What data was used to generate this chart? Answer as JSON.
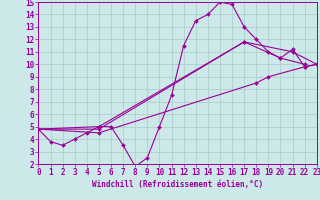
{
  "xlabel": "Windchill (Refroidissement éolien,°C)",
  "bg_color": "#cce8e8",
  "line_color": "#990099",
  "grid_color": "#aacccc",
  "xlim": [
    0,
    23
  ],
  "ylim": [
    2,
    15
  ],
  "xticks": [
    0,
    1,
    2,
    3,
    4,
    5,
    6,
    7,
    8,
    9,
    10,
    11,
    12,
    13,
    14,
    15,
    16,
    17,
    18,
    19,
    20,
    21,
    22,
    23
  ],
  "yticks": [
    2,
    3,
    4,
    5,
    6,
    7,
    8,
    9,
    10,
    11,
    12,
    13,
    14,
    15
  ],
  "series_full": [
    {
      "x": [
        0,
        1,
        2,
        3,
        4,
        5,
        6,
        7,
        8,
        9,
        10,
        11,
        12,
        13,
        14,
        15,
        16,
        17,
        18,
        19,
        20,
        21,
        22,
        23
      ],
      "y": [
        4.8,
        3.8,
        3.5,
        4.0,
        4.5,
        5.0,
        5.0,
        3.5,
        1.8,
        2.5,
        5.0,
        7.5,
        11.5,
        13.5,
        14.0,
        15.0,
        14.8,
        13.0,
        12.0,
        11.0,
        10.5,
        11.2,
        9.8,
        10.0
      ]
    },
    {
      "x": [
        0,
        5,
        17,
        21,
        23
      ],
      "y": [
        4.8,
        4.8,
        11.8,
        11.0,
        10.0
      ]
    },
    {
      "x": [
        0,
        5,
        17,
        20,
        22
      ],
      "y": [
        4.8,
        5.0,
        11.8,
        10.5,
        10.0
      ]
    },
    {
      "x": [
        0,
        5,
        18,
        19,
        22,
        23
      ],
      "y": [
        4.8,
        4.5,
        8.5,
        9.0,
        9.8,
        10.0
      ]
    }
  ],
  "tick_fontsize": 5.5,
  "xlabel_fontsize": 5.5,
  "marker_size": 2.0,
  "linewidth": 0.8
}
